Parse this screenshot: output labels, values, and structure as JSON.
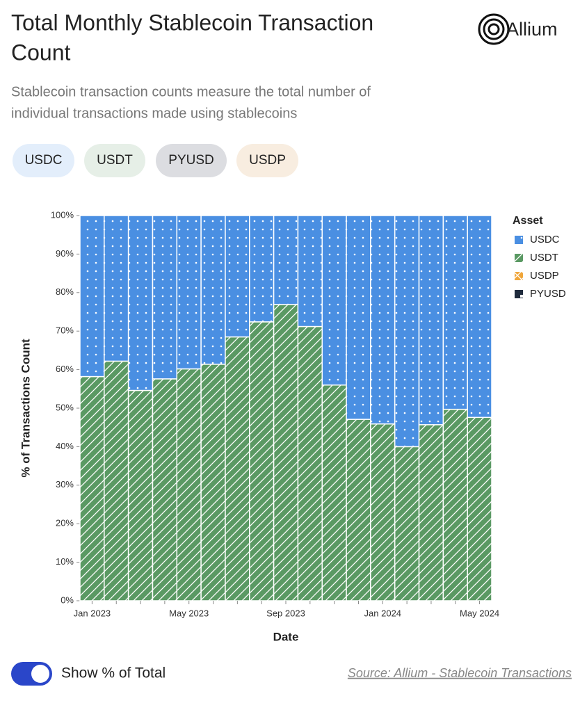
{
  "header": {
    "title": [
      "Total Monthly Stablecoin Transaction",
      "Count"
    ],
    "subtitle": [
      "Stablecoin transaction counts measure the total number of",
      "individual transactions made using stablecoins"
    ],
    "brand": "Allium"
  },
  "filters": [
    {
      "label": "USDC",
      "color": "#e3eefb"
    },
    {
      "label": "USDT",
      "color": "#e6efe7"
    },
    {
      "label": "PYUSD",
      "color": "#dcdde1"
    },
    {
      "label": "USDP",
      "color": "#f8ede0"
    }
  ],
  "chart_data": {
    "type": "stacked-bar",
    "xlabel": "Date",
    "ylabel": "% of Transactions Count",
    "legend_title": "Asset",
    "legend": "right",
    "categories": [
      "Jan 2023",
      null,
      null,
      null,
      "May 2023",
      null,
      null,
      null,
      "Sep 2023",
      null,
      null,
      null,
      "Jan 2024",
      null,
      null,
      null,
      "May 2024"
    ],
    "series": [
      {
        "name": "USDC",
        "color": "#4a8fe2",
        "pattern": "dots",
        "values": [
          41.8,
          37.8,
          45.4,
          42.4,
          39.8,
          38.6,
          31.5,
          27.6,
          23.1,
          28.8,
          44.0,
          52.9,
          54.1,
          60.0,
          54.3,
          50.3,
          52.4
        ]
      },
      {
        "name": "USDT",
        "color": "#5a9963",
        "pattern": "stripes",
        "values": [
          58.2,
          62.2,
          54.6,
          57.6,
          60.2,
          61.4,
          68.5,
          72.4,
          76.9,
          71.2,
          56.0,
          47.1,
          45.9,
          40.0,
          45.7,
          49.7,
          47.6
        ]
      },
      {
        "name": "USDP",
        "color": "#f0a63a",
        "pattern": "cross",
        "values": [
          0,
          0,
          0,
          0,
          0,
          0,
          0,
          0,
          0,
          0,
          0,
          0,
          0,
          0,
          0,
          0,
          0
        ]
      },
      {
        "name": "PYUSD",
        "color": "#1f2b3c",
        "pattern": "square",
        "values": [
          0,
          0,
          0,
          0,
          0,
          0,
          0,
          0,
          0,
          0,
          0,
          0,
          0,
          0,
          0,
          0,
          0
        ]
      }
    ],
    "ylim": [
      0,
      100
    ],
    "yticks": [
      {
        "value": 0,
        "label": "0%"
      },
      {
        "value": 10,
        "label": "10%"
      },
      {
        "value": 20,
        "label": "20%"
      },
      {
        "value": 30,
        "label": "30%"
      },
      {
        "value": 40,
        "label": "40%"
      },
      {
        "value": 50,
        "label": "50%"
      },
      {
        "value": 60,
        "label": "60%"
      },
      {
        "value": 70,
        "label": "70%"
      },
      {
        "value": 80,
        "label": "80%"
      },
      {
        "value": 90,
        "label": "90%"
      },
      {
        "value": 100,
        "label": "100%"
      }
    ]
  },
  "footer": {
    "toggle_label": "Show % of Total",
    "source": "Source: Allium - Stablecoin Transactions"
  }
}
